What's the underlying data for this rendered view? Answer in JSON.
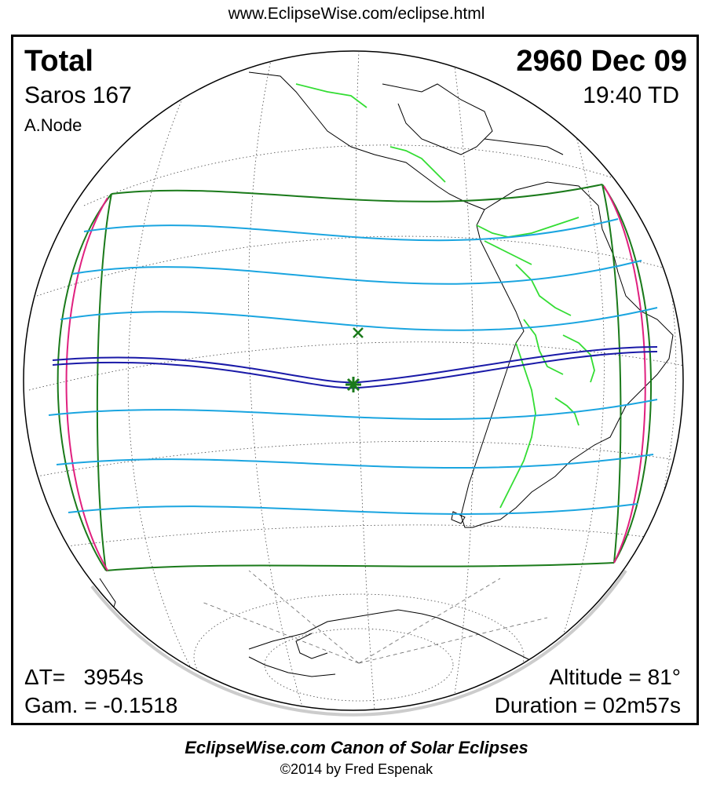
{
  "header": {
    "url": "www.EclipseWise.com/eclipse.html"
  },
  "eclipse": {
    "type": "Total",
    "saros": "Saros 167",
    "node": "A.Node",
    "date": "2960 Dec 09",
    "time": "19:40 TD",
    "delta_t": "ΔT=   3954s",
    "gamma": "Gam. = -0.1518",
    "altitude": "Altitude = 81°",
    "duration": "Duration = 02m57s"
  },
  "footer": {
    "canon": "EclipseWise.com Canon of Solar Eclipses",
    "copyright": "©2014 by Fred Espenak"
  },
  "colors": {
    "penumbra_limits": "#1a7a1a",
    "rise_set_curves": "#e0207f",
    "magnitude_lines": "#1aa5e0",
    "central_path": "#1a1aa8",
    "borders": "#33dd33",
    "coastlines": "#000000",
    "greatest_eclipse_marker": "#1a7a1a"
  },
  "legend_icons": [
    "greatest-eclipse-star-icon",
    "sub-solar-point-x-icon"
  ]
}
